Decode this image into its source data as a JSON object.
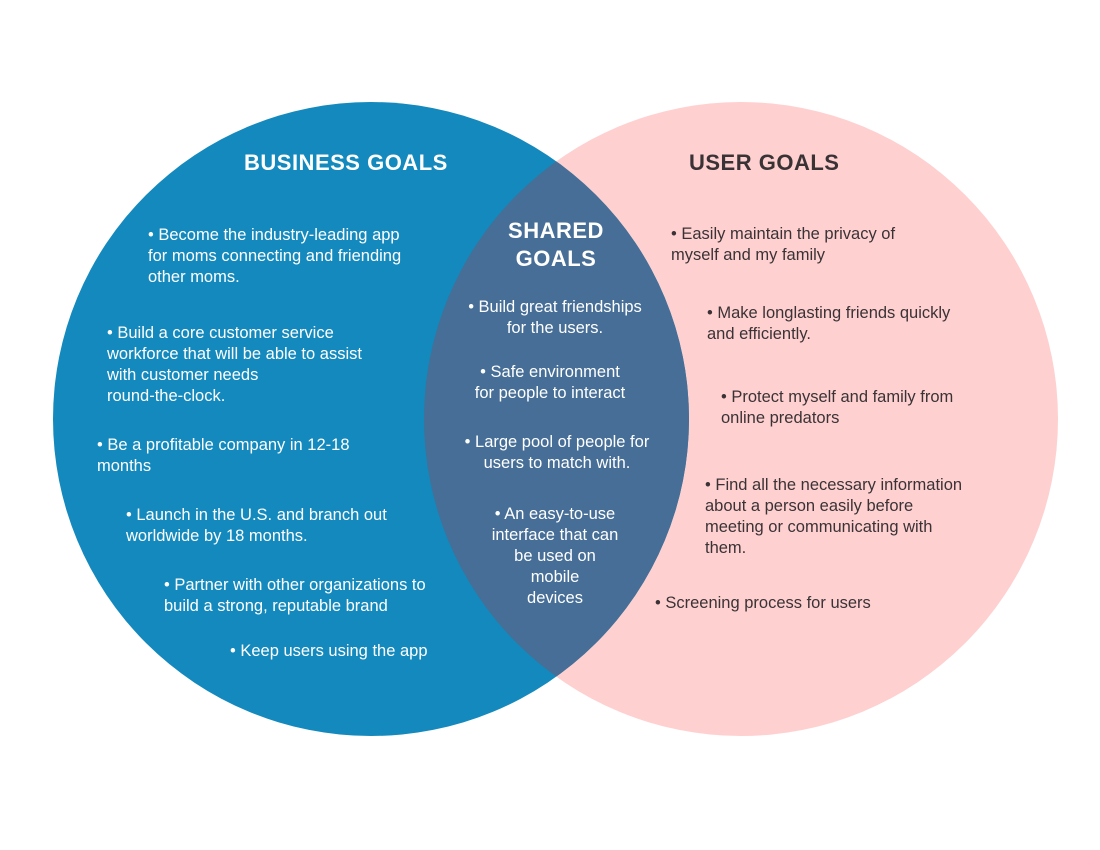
{
  "colors": {
    "business_circle": "#1389bd",
    "user_circle": "#ffd0d0",
    "shared_overlap": "#466e96",
    "business_text": "#ffffff",
    "user_text": "#3a3336",
    "shared_text": "#ffffff"
  },
  "business": {
    "title": "BUSINESS GOALS",
    "items": [
      "• Become the industry-leading app\nfor moms connecting and friending\nother moms.",
      "• Build a core customer service\nworkforce that will be able to assist\nwith customer needs\nround-the-clock.",
      "• Be a profitable company in 12-18\nmonths",
      "• Launch in the U.S. and branch out\nworldwide by 18 months.",
      "• Partner with other organizations to\nbuild a strong, reputable brand",
      "• Keep users using the app"
    ]
  },
  "shared": {
    "title": "SHARED\nGOALS",
    "items": [
      "• Build great friendships\nfor the users.",
      "• Safe environment\nfor people to interact",
      "• Large pool of people for\nusers to match with.",
      "• An easy-to-use\ninterface that can\nbe used on\nmobile\ndevices"
    ]
  },
  "user": {
    "title": "USER GOALS",
    "items": [
      "• Easily maintain the privacy of\nmyself and my family",
      "• Make longlasting friends quickly\nand efficiently.",
      "• Protect myself and family from\nonline predators",
      "• Find all the necessary information\nabout a person easily before\nmeeting or communicating with\nthem.",
      "• Screening process for users"
    ]
  }
}
